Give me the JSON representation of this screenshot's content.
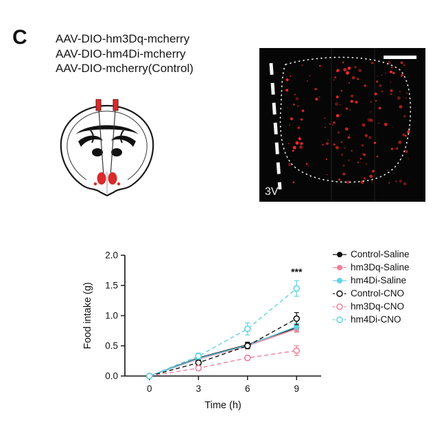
{
  "panel": {
    "label": "C",
    "aav_lines": [
      "AAV-DIO-hm3Dq-mcherry",
      "AAV-DIO-hm4Di-mcherry",
      "AAV-DIO-mcherry(Control)"
    ]
  },
  "micrograph": {
    "ventricle_label": "3V"
  },
  "colors": {
    "signal_red": "#ff2a2a",
    "injection_red": "#d92b2b",
    "pink": "#f07f9b",
    "cyan": "#5fd3e2",
    "black": "#111111"
  },
  "chart_data": {
    "type": "line",
    "x": [
      0,
      3,
      6,
      9
    ],
    "xticks": [
      0,
      3,
      6,
      9
    ],
    "yticks": [
      0.0,
      0.5,
      1.0,
      1.5,
      2.0
    ],
    "xlabel": "Time (h)",
    "ylabel": "Food intake (g)",
    "ylim": [
      0,
      2.0
    ],
    "legend_position": "right",
    "annotation": {
      "text": "***",
      "x": 9,
      "y": 1.67
    },
    "series": [
      {
        "name": "Control-Saline",
        "color": "#111111",
        "marker": "filled",
        "line": "solid",
        "values": [
          0,
          0.3,
          0.52,
          0.8
        ],
        "errors": [
          0,
          0.03,
          0.04,
          0.07
        ]
      },
      {
        "name": "hm3Dq-Saline",
        "color": "#f07f9b",
        "marker": "filled",
        "line": "solid",
        "values": [
          0,
          0.28,
          0.5,
          0.78
        ],
        "errors": [
          0,
          0.03,
          0.04,
          0.05
        ]
      },
      {
        "name": "hm4Di-Saline",
        "color": "#5fd3e2",
        "marker": "filled",
        "line": "solid",
        "values": [
          0,
          0.29,
          0.51,
          0.82
        ],
        "errors": [
          0,
          0.03,
          0.04,
          0.05
        ]
      },
      {
        "name": "Control-CNO",
        "color": "#111111",
        "marker": "open",
        "line": "dashed",
        "values": [
          0,
          0.22,
          0.5,
          0.95
        ],
        "errors": [
          0,
          0.04,
          0.05,
          0.1
        ]
      },
      {
        "name": "hm3Dq-CNO",
        "color": "#f07f9b",
        "marker": "open",
        "line": "dashed",
        "values": [
          0,
          0.13,
          0.3,
          0.42
        ],
        "errors": [
          0,
          0.03,
          0.04,
          0.08
        ]
      },
      {
        "name": "hm4Di-CNO",
        "color": "#5fd3e2",
        "marker": "open",
        "line": "dashed",
        "values": [
          0,
          0.33,
          0.78,
          1.45
        ],
        "errors": [
          0,
          0.05,
          0.1,
          0.13
        ]
      }
    ]
  }
}
